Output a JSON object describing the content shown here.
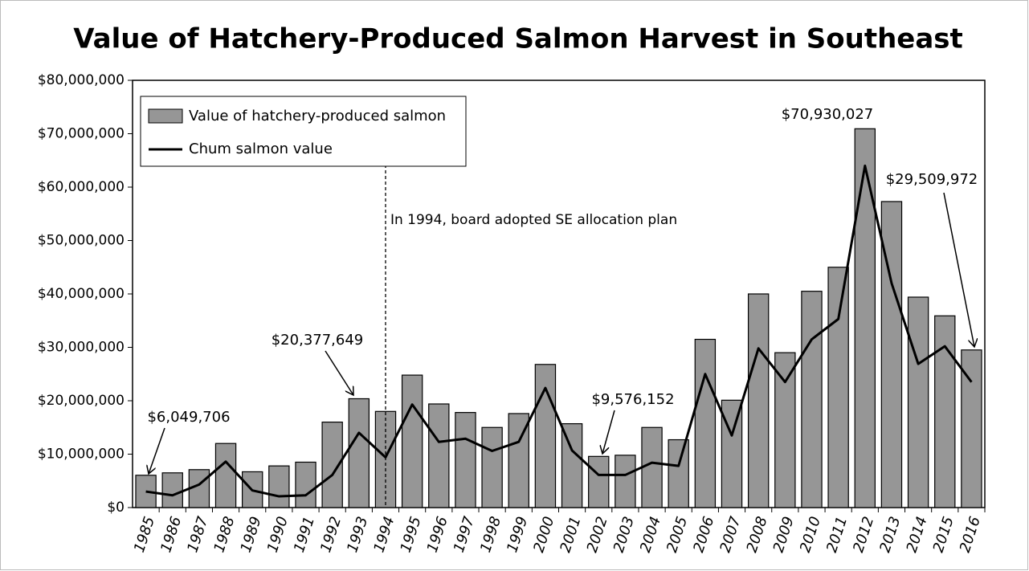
{
  "chart_data": {
    "type": "bar",
    "title": "Value of Hatchery-Produced Salmon Harvest in Southeast",
    "categories": [
      "1985",
      "1986",
      "1987",
      "1988",
      "1989",
      "1990",
      "1991",
      "1992",
      "1993",
      "1994",
      "1995",
      "1996",
      "1997",
      "1998",
      "1999",
      "2000",
      "2001",
      "2002",
      "2003",
      "2004",
      "2005",
      "2006",
      "2007",
      "2008",
      "2009",
      "2010",
      "2011",
      "2012",
      "2013",
      "2014",
      "2015",
      "2016"
    ],
    "series": [
      {
        "name": "Value of hatchery-produced salmon",
        "type": "bar",
        "color": "#969696",
        "values": [
          6049706,
          6500000,
          7100000,
          12000000,
          6700000,
          7800000,
          8500000,
          16000000,
          20377649,
          18000000,
          24800000,
          19400000,
          17800000,
          15000000,
          17600000,
          26800000,
          15700000,
          9576152,
          9800000,
          15000000,
          12700000,
          31500000,
          20100000,
          40000000,
          29000000,
          40500000,
          45000000,
          70930027,
          57300000,
          39400000,
          35900000,
          29509972
        ],
        "value_labels": [
          "$6,049,706",
          null,
          null,
          null,
          null,
          null,
          null,
          null,
          "$20,377,649",
          null,
          null,
          null,
          null,
          null,
          null,
          null,
          null,
          "$9,576,152",
          null,
          null,
          null,
          null,
          null,
          null,
          null,
          null,
          null,
          "$70,930,027",
          null,
          null,
          null,
          "$29,509,972"
        ]
      },
      {
        "name": "Chum salmon value",
        "type": "line",
        "color": "#000000",
        "values": [
          3000000,
          2300000,
          4300000,
          8600000,
          3200000,
          2100000,
          2300000,
          6100000,
          14000000,
          9400000,
          19300000,
          12300000,
          12900000,
          10600000,
          12300000,
          22400000,
          10700000,
          6100000,
          6100000,
          8400000,
          7800000,
          25000000,
          13500000,
          29800000,
          23500000,
          31500000,
          35300000,
          64000000,
          42000000,
          26900000,
          30200000,
          23500000
        ]
      }
    ],
    "ylim": [
      0,
      80000000
    ],
    "yticks": [
      {
        "value": 0,
        "label": "$0"
      },
      {
        "value": 10000000,
        "label": "$10,000,000"
      },
      {
        "value": 20000000,
        "label": "$20,000,000"
      },
      {
        "value": 30000000,
        "label": "$30,000,000"
      },
      {
        "value": 40000000,
        "label": "$40,000,000"
      },
      {
        "value": 50000000,
        "label": "$50,000,000"
      },
      {
        "value": 60000000,
        "label": "$60,000,000"
      },
      {
        "value": 70000000,
        "label": "$70,000,000"
      },
      {
        "value": 80000000,
        "label": "$80,000,000"
      }
    ],
    "grid": false,
    "legend": "upper left",
    "annotations": [
      {
        "text": "In 1994, board adopted SE allocation plan",
        "at": "1994"
      }
    ]
  }
}
